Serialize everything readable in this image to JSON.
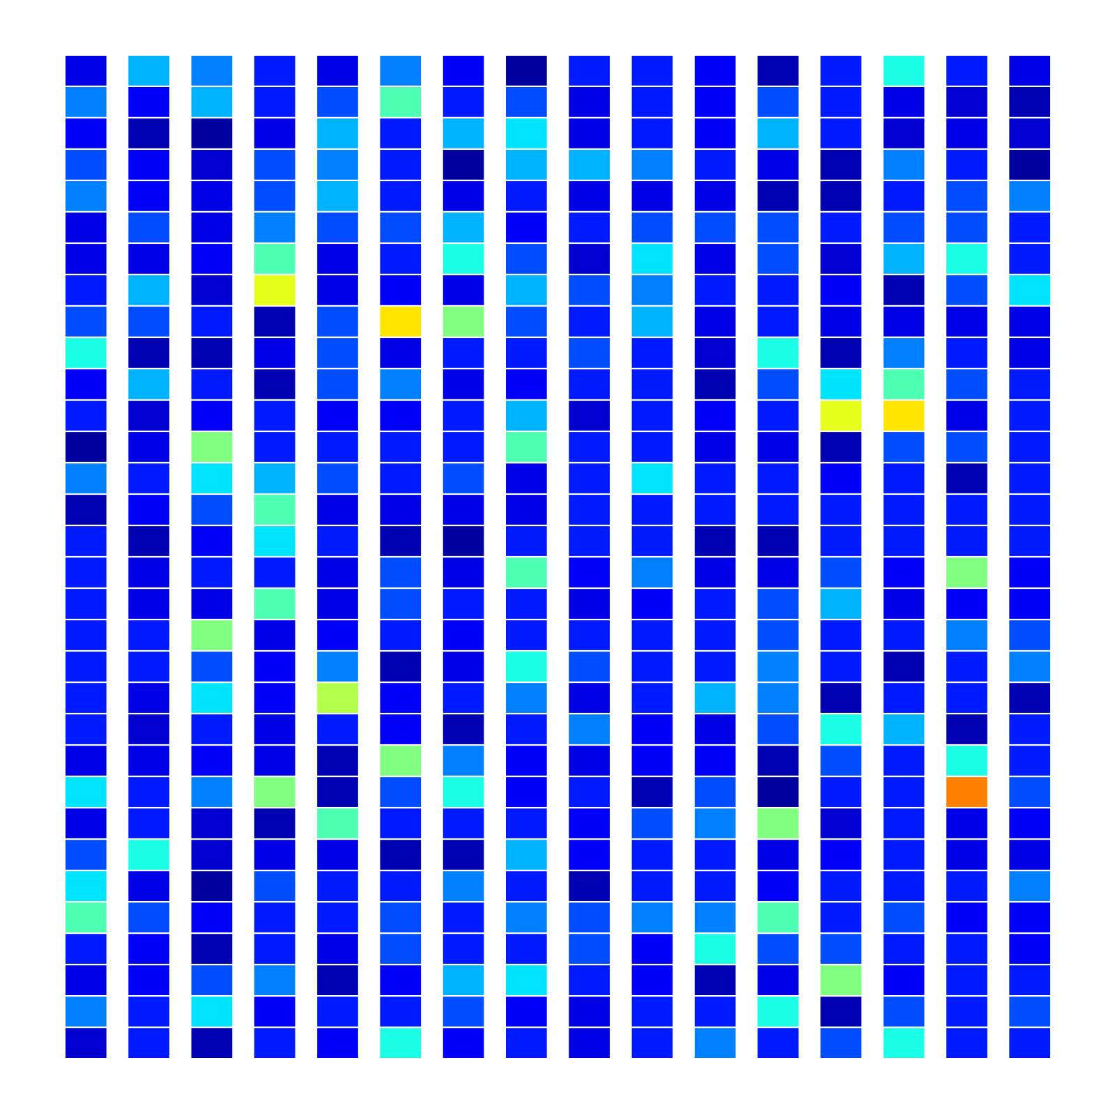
{
  "chart_data": {
    "type": "heatmap",
    "tick_labels": false,
    "zlim": [
      0,
      1
    ],
    "cells": [
      [
        0.1,
        0.3,
        0.25,
        0.15,
        0.1,
        0.25,
        0.12,
        0.03,
        0.15,
        0.15,
        0.12,
        0.05,
        0.15,
        0.4,
        0.15,
        0.1
      ],
      [
        0.25,
        0.12,
        0.3,
        0.15,
        0.2,
        0.45,
        0.15,
        0.2,
        0.1,
        0.15,
        0.12,
        0.2,
        0.15,
        0.1,
        0.08,
        0.05
      ],
      [
        0.12,
        0.05,
        0.03,
        0.1,
        0.3,
        0.15,
        0.3,
        0.35,
        0.1,
        0.15,
        0.12,
        0.3,
        0.15,
        0.08,
        0.1,
        0.08
      ],
      [
        0.2,
        0.12,
        0.08,
        0.2,
        0.25,
        0.15,
        0.03,
        0.3,
        0.3,
        0.25,
        0.15,
        0.1,
        0.05,
        0.25,
        0.15,
        0.03
      ],
      [
        0.25,
        0.12,
        0.1,
        0.2,
        0.3,
        0.15,
        0.1,
        0.15,
        0.1,
        0.1,
        0.1,
        0.05,
        0.05,
        0.15,
        0.2,
        0.25
      ],
      [
        0.1,
        0.2,
        0.1,
        0.25,
        0.2,
        0.2,
        0.3,
        0.12,
        0.15,
        0.2,
        0.2,
        0.2,
        0.15,
        0.2,
        0.2,
        0.15
      ],
      [
        0.1,
        0.1,
        0.12,
        0.45,
        0.1,
        0.15,
        0.4,
        0.2,
        0.08,
        0.35,
        0.1,
        0.2,
        0.08,
        0.3,
        0.4,
        0.15
      ],
      [
        0.15,
        0.3,
        0.08,
        0.6,
        0.1,
        0.12,
        0.1,
        0.3,
        0.2,
        0.25,
        0.15,
        0.15,
        0.12,
        0.05,
        0.2,
        0.35
      ],
      [
        0.2,
        0.2,
        0.15,
        0.05,
        0.2,
        0.65,
        0.5,
        0.2,
        0.15,
        0.3,
        0.1,
        0.15,
        0.1,
        0.1,
        0.1,
        0.1
      ],
      [
        0.4,
        0.05,
        0.05,
        0.1,
        0.2,
        0.1,
        0.15,
        0.15,
        0.2,
        0.15,
        0.08,
        0.4,
        0.05,
        0.25,
        0.15,
        0.1
      ],
      [
        0.12,
        0.3,
        0.15,
        0.05,
        0.2,
        0.25,
        0.1,
        0.12,
        0.15,
        0.15,
        0.05,
        0.2,
        0.35,
        0.45,
        0.2,
        0.15
      ],
      [
        0.15,
        0.08,
        0.12,
        0.15,
        0.12,
        0.12,
        0.15,
        0.3,
        0.08,
        0.15,
        0.12,
        0.15,
        0.6,
        0.65,
        0.1,
        0.15
      ],
      [
        0.03,
        0.1,
        0.5,
        0.15,
        0.15,
        0.15,
        0.15,
        0.45,
        0.15,
        0.15,
        0.1,
        0.1,
        0.05,
        0.2,
        0.2,
        0.15
      ],
      [
        0.25,
        0.15,
        0.35,
        0.3,
        0.2,
        0.15,
        0.2,
        0.1,
        0.15,
        0.35,
        0.15,
        0.15,
        0.12,
        0.15,
        0.05,
        0.15
      ],
      [
        0.05,
        0.12,
        0.2,
        0.45,
        0.1,
        0.1,
        0.1,
        0.1,
        0.15,
        0.15,
        0.15,
        0.15,
        0.15,
        0.15,
        0.15,
        0.15
      ],
      [
        0.15,
        0.05,
        0.12,
        0.35,
        0.15,
        0.05,
        0.03,
        0.15,
        0.15,
        0.15,
        0.05,
        0.05,
        0.15,
        0.15,
        0.15,
        0.15
      ],
      [
        0.15,
        0.1,
        0.15,
        0.15,
        0.1,
        0.2,
        0.1,
        0.45,
        0.12,
        0.25,
        0.1,
        0.1,
        0.2,
        0.12,
        0.5,
        0.12
      ],
      [
        0.15,
        0.1,
        0.1,
        0.45,
        0.1,
        0.2,
        0.15,
        0.15,
        0.1,
        0.12,
        0.15,
        0.2,
        0.3,
        0.1,
        0.12,
        0.12
      ],
      [
        0.15,
        0.15,
        0.5,
        0.1,
        0.12,
        0.15,
        0.12,
        0.15,
        0.15,
        0.15,
        0.15,
        0.2,
        0.15,
        0.15,
        0.25,
        0.2
      ],
      [
        0.15,
        0.15,
        0.2,
        0.12,
        0.25,
        0.05,
        0.1,
        0.4,
        0.2,
        0.15,
        0.15,
        0.25,
        0.15,
        0.05,
        0.15,
        0.25
      ],
      [
        0.15,
        0.1,
        0.35,
        0.12,
        0.55,
        0.12,
        0.15,
        0.25,
        0.1,
        0.15,
        0.3,
        0.25,
        0.05,
        0.15,
        0.15,
        0.05
      ],
      [
        0.15,
        0.08,
        0.15,
        0.1,
        0.15,
        0.12,
        0.05,
        0.15,
        0.25,
        0.12,
        0.1,
        0.2,
        0.4,
        0.3,
        0.05,
        0.15
      ],
      [
        0.1,
        0.1,
        0.12,
        0.1,
        0.05,
        0.5,
        0.25,
        0.12,
        0.1,
        0.12,
        0.12,
        0.05,
        0.2,
        0.15,
        0.4,
        0.15
      ],
      [
        0.35,
        0.15,
        0.25,
        0.5,
        0.05,
        0.2,
        0.4,
        0.12,
        0.15,
        0.05,
        0.2,
        0.03,
        0.15,
        0.15,
        0.75,
        0.2
      ],
      [
        0.1,
        0.15,
        0.08,
        0.05,
        0.45,
        0.15,
        0.15,
        0.15,
        0.12,
        0.2,
        0.25,
        0.5,
        0.08,
        0.15,
        0.1,
        0.12
      ],
      [
        0.2,
        0.4,
        0.08,
        0.1,
        0.1,
        0.05,
        0.05,
        0.3,
        0.12,
        0.15,
        0.15,
        0.1,
        0.12,
        0.15,
        0.1,
        0.1
      ],
      [
        0.35,
        0.1,
        0.03,
        0.2,
        0.15,
        0.15,
        0.25,
        0.15,
        0.05,
        0.15,
        0.15,
        0.12,
        0.15,
        0.15,
        0.15,
        0.25
      ],
      [
        0.45,
        0.2,
        0.12,
        0.15,
        0.15,
        0.2,
        0.15,
        0.25,
        0.2,
        0.25,
        0.25,
        0.45,
        0.15,
        0.2,
        0.12,
        0.12
      ],
      [
        0.15,
        0.12,
        0.05,
        0.15,
        0.1,
        0.2,
        0.15,
        0.15,
        0.2,
        0.12,
        0.4,
        0.2,
        0.2,
        0.15,
        0.15,
        0.12
      ],
      [
        0.1,
        0.12,
        0.2,
        0.25,
        0.05,
        0.12,
        0.3,
        0.35,
        0.15,
        0.12,
        0.05,
        0.1,
        0.5,
        0.12,
        0.15,
        0.15
      ],
      [
        0.25,
        0.15,
        0.35,
        0.12,
        0.15,
        0.15,
        0.2,
        0.12,
        0.1,
        0.15,
        0.15,
        0.4,
        0.05,
        0.2,
        0.15,
        0.2
      ],
      [
        0.08,
        0.15,
        0.05,
        0.15,
        0.12,
        0.4,
        0.12,
        0.15,
        0.1,
        0.15,
        0.25,
        0.15,
        0.2,
        0.4,
        0.15,
        0.15
      ]
    ]
  }
}
